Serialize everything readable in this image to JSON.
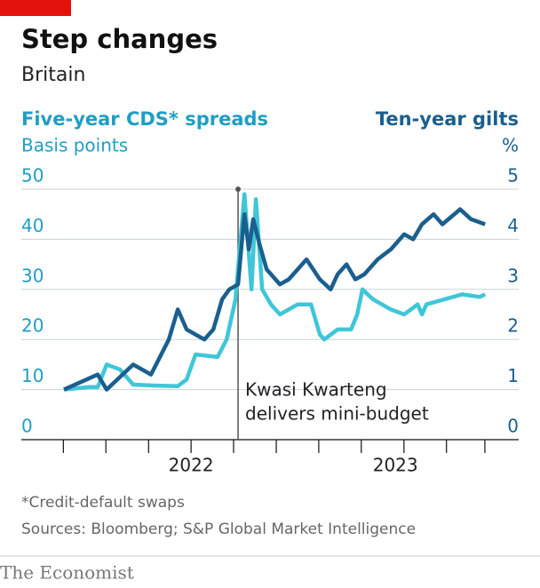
{
  "chart_data": {
    "type": "line",
    "title": "Step changes",
    "subtitle": "Britain",
    "y_title": "Five-year CDS* spreads",
    "y_label": "Basis points",
    "y2_title": "Ten-year gilts",
    "y2_label": "%",
    "xlim": [
      2021.83,
      2023.96
    ],
    "xticks": [
      2021.875,
      2022.083,
      2022.292,
      2022.5,
      2022.708,
      2022.917,
      2023.125,
      2023.333,
      2023.542,
      2023.75,
      2023.938
    ],
    "xlabels": [
      {
        "value": 2022.5,
        "label": "2022"
      },
      {
        "value": 2023.5,
        "label": "2023"
      }
    ],
    "ylim": [
      0,
      50
    ],
    "yticks": [
      0,
      10,
      20,
      30,
      40,
      50
    ],
    "y2lim": [
      0,
      5
    ],
    "y2ticks": [
      0,
      1,
      2,
      3,
      4,
      5
    ],
    "grid": true,
    "series": [
      {
        "name": "Five-year CDS* spreads",
        "color": "#3fc6d8",
        "axis": "y",
        "x": [
          2021.878,
          2022.0,
          2022.043,
          2022.087,
          2022.152,
          2022.217,
          2022.326,
          2022.435,
          2022.478,
          2022.522,
          2022.63,
          2022.674,
          2022.717,
          2022.761,
          2022.796,
          2022.817,
          2022.848,
          2022.891,
          2022.935,
          2023.022,
          2023.087,
          2023.13,
          2023.152,
          2023.217,
          2023.283,
          2023.313,
          2023.339,
          2023.391,
          2023.478,
          2023.543,
          2023.609,
          2023.63,
          2023.652,
          2023.739,
          2023.826,
          2023.913,
          2023.939
        ],
        "values": [
          10,
          10.5,
          10.5,
          15,
          14,
          11,
          10.8,
          10.7,
          12,
          17,
          16.5,
          20,
          28,
          49,
          30,
          48,
          30,
          27,
          25,
          27,
          27,
          21,
          20,
          22,
          22,
          25,
          30,
          28,
          26,
          25,
          27,
          25,
          27,
          28,
          29,
          28.5,
          29
        ]
      },
      {
        "name": "Ten-year gilts",
        "color": "#1a5f8e",
        "axis": "y2",
        "x": [
          2021.878,
          2022.043,
          2022.087,
          2022.217,
          2022.304,
          2022.391,
          2022.435,
          2022.478,
          2022.565,
          2022.609,
          2022.652,
          2022.687,
          2022.73,
          2022.761,
          2022.783,
          2022.804,
          2022.835,
          2022.87,
          2022.935,
          2022.978,
          2023.022,
          2023.065,
          2023.13,
          2023.183,
          2023.217,
          2023.261,
          2023.304,
          2023.348,
          2023.413,
          2023.478,
          2023.543,
          2023.587,
          2023.63,
          2023.687,
          2023.73,
          2023.817,
          2023.87,
          2023.939
        ],
        "values": [
          1.0,
          1.3,
          1.0,
          1.5,
          1.3,
          2.0,
          2.6,
          2.2,
          2.0,
          2.2,
          2.8,
          3.0,
          3.1,
          4.5,
          3.8,
          4.4,
          3.9,
          3.4,
          3.1,
          3.2,
          3.4,
          3.6,
          3.2,
          3.0,
          3.3,
          3.5,
          3.2,
          3.3,
          3.6,
          3.8,
          4.1,
          4.0,
          4.3,
          4.5,
          4.3,
          4.6,
          4.4,
          4.3
        ]
      }
    ],
    "annotation": {
      "x": 2022.73,
      "lines": [
        "Kwasi Kwarteng",
        "delivers mini-budget"
      ]
    },
    "notes": [
      "*Credit-default swaps",
      "Sources: Bloomberg; S&P Global Market Intelligence"
    ],
    "brand": "The Economist"
  }
}
